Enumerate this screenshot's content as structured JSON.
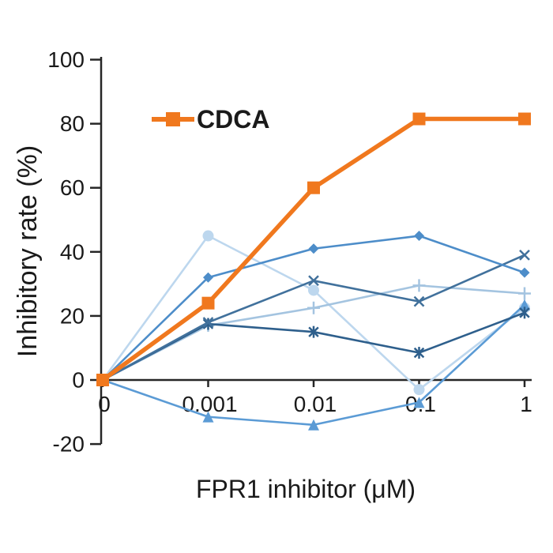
{
  "figure": {
    "background": "#ffffff",
    "axis_color": "#262626",
    "text_color": "#1a1a1a"
  },
  "chart_data": {
    "type": "line",
    "title": "",
    "xlabel": "FPR1 inhibitor (μM)",
    "ylabel": "Inhibitory rate (%)",
    "x_categories": [
      "0",
      "0.001",
      "0.01",
      "0.1",
      "1"
    ],
    "ylim": [
      -20,
      100
    ],
    "y_ticks": [
      100,
      80,
      60,
      40,
      20,
      0,
      -20
    ],
    "grid": false,
    "legend": {
      "position": "inside-top-left",
      "entries": [
        "CDCA"
      ]
    },
    "series": [
      {
        "name": "blue-circle",
        "marker": "circle",
        "color": "#BDD7EE",
        "line_width": 2.6,
        "in_legend": false,
        "values": [
          0,
          45,
          28,
          -3,
          22.5
        ]
      },
      {
        "name": "blue-plus",
        "marker": "plus",
        "color": "#A4C4E0",
        "line_width": 2.6,
        "in_legend": false,
        "values": [
          0,
          17,
          22.5,
          29.5,
          27
        ]
      },
      {
        "name": "blue-triangle",
        "marker": "triangle",
        "color": "#5B9BD5",
        "line_width": 2.6,
        "in_legend": false,
        "values": [
          0,
          -11.5,
          -14,
          -7,
          23.5
        ]
      },
      {
        "name": "blue-asterisk",
        "marker": "asterisk",
        "color": "#2E5F8C",
        "line_width": 2.6,
        "in_legend": false,
        "values": [
          0,
          17.5,
          15,
          8.5,
          21
        ]
      },
      {
        "name": "blue-x",
        "marker": "x",
        "color": "#41719C",
        "line_width": 2.6,
        "in_legend": false,
        "values": [
          0,
          18,
          31,
          24.5,
          39
        ]
      },
      {
        "name": "blue-diamond",
        "marker": "diamond",
        "color": "#4D8DC9",
        "line_width": 2.6,
        "in_legend": false,
        "values": [
          0,
          32,
          41,
          45,
          33.5
        ]
      },
      {
        "name": "CDCA",
        "marker": "square",
        "color": "#F0781E",
        "line_width": 5.5,
        "in_legend": true,
        "values": [
          0,
          24,
          60,
          81.5,
          81.5
        ]
      }
    ]
  }
}
